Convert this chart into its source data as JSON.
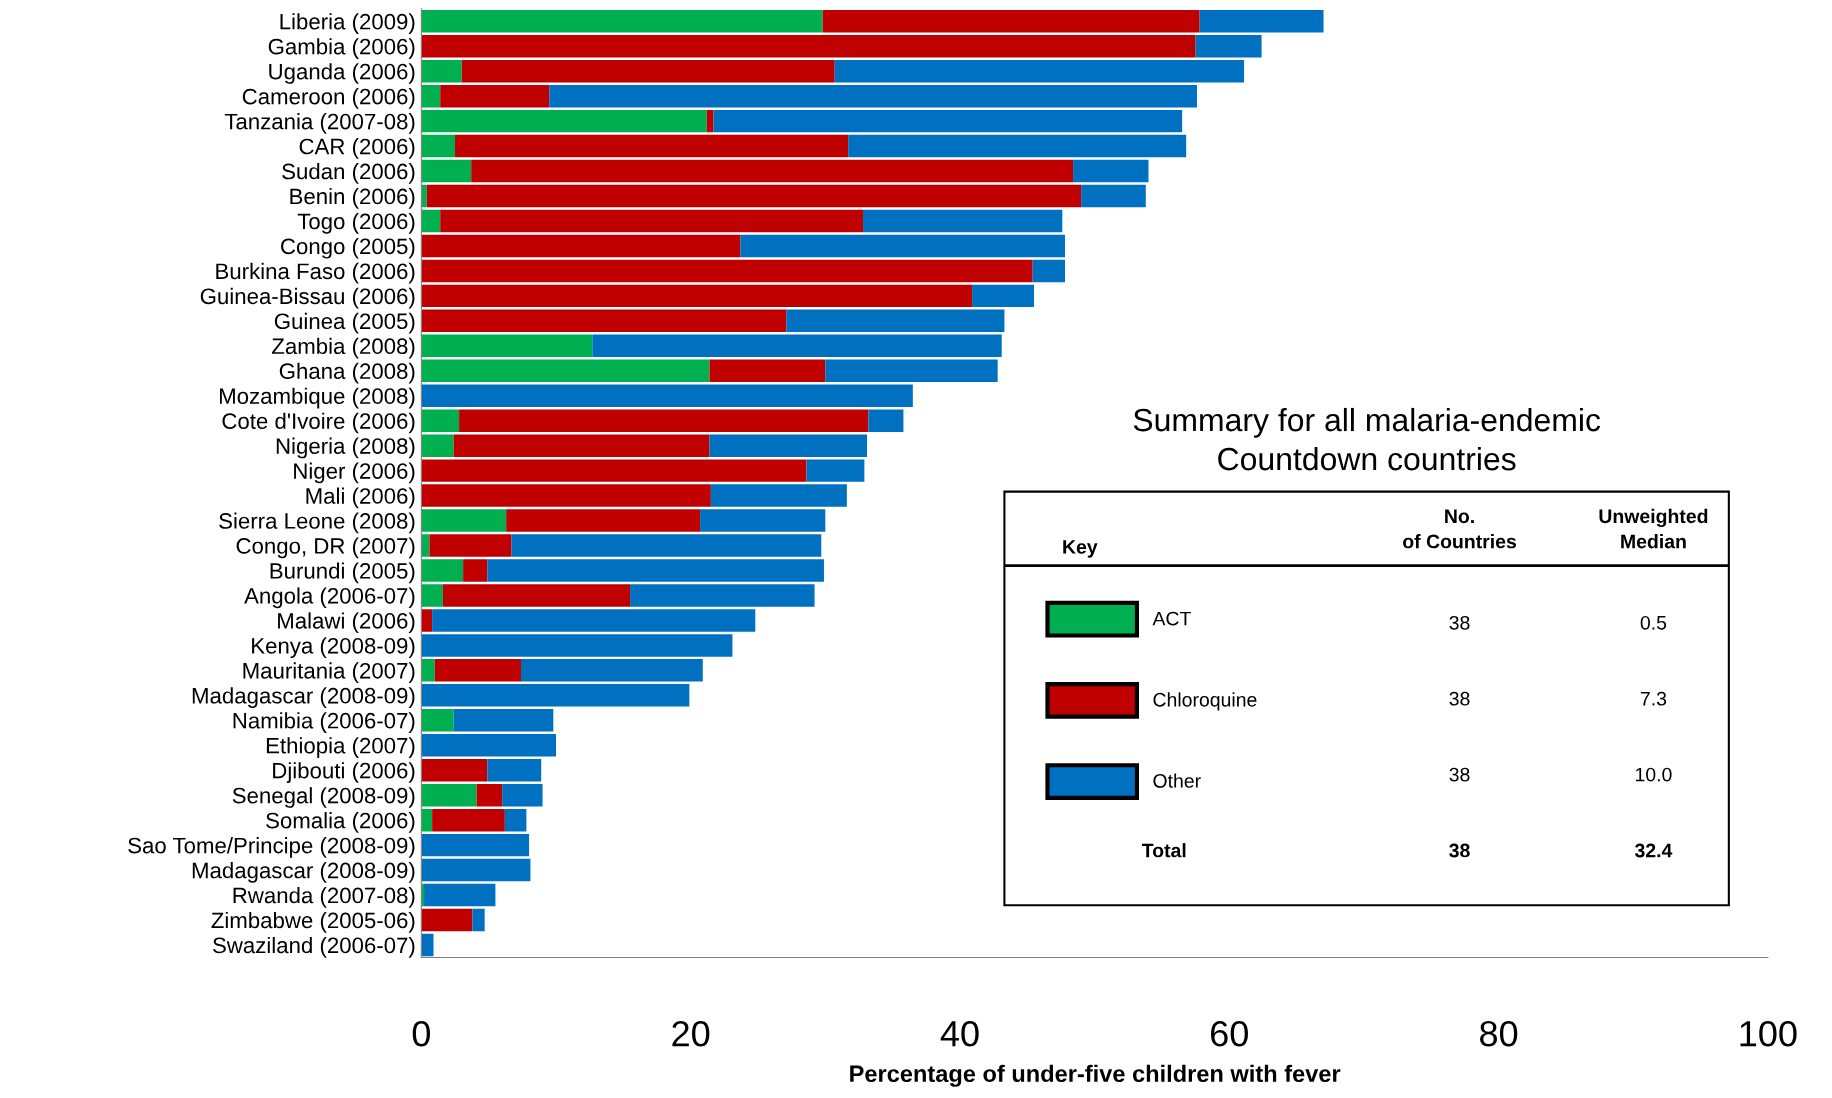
{
  "chart_data": {
    "type": "bar",
    "orientation": "horizontal",
    "stacked": true,
    "categories": [
      "Liberia (2009)",
      "Gambia (2006)",
      "Uganda (2006)",
      "Cameroon (2006)",
      "Tanzania (2007-08)",
      "CAR (2006)",
      "Sudan (2006)",
      "Benin (2006)",
      "Togo (2006)",
      "Congo (2005)",
      "Burkina Faso (2006)",
      "Guinea-Bissau (2006)",
      "Guinea (2005)",
      "Zambia (2008)",
      "Ghana (2008)",
      "Mozambique (2008)",
      "Cote d'Ivoire (2006)",
      "Nigeria (2008)",
      "Niger (2006)",
      "Mali (2006)",
      "Sierra Leone (2008)",
      "Congo, DR (2007)",
      "Burundi (2005)",
      "Angola (2006-07)",
      "Malawi (2006)",
      "Kenya (2008-09)",
      "Mauritania (2007)",
      "Madagascar (2008-09)",
      "Namibia (2006-07)",
      "Ethiopia (2007)",
      "Djibouti (2006)",
      "Senegal (2008-09)",
      "Somalia (2006)",
      "Sao Tome/Principe (2008-09)",
      "Madagascar (2008-09)",
      "Rwanda (2007-08)",
      "Zimbabwe (2005-06)",
      "Swaziland (2006-07)"
    ],
    "series": [
      {
        "name": "ACT",
        "color": "#00b050",
        "values": [
          29.8,
          0,
          3.0,
          1.4,
          21.2,
          2.5,
          3.7,
          0.4,
          1.4,
          0,
          0,
          0,
          0,
          12.7,
          21.4,
          0,
          2.8,
          2.4,
          0,
          0,
          6.3,
          0.6,
          3.1,
          1.6,
          0,
          0,
          1.0,
          0,
          2.4,
          0,
          0,
          4.1,
          0.8,
          0,
          0,
          0.2,
          0,
          0
        ]
      },
      {
        "name": "Chloroquine",
        "color": "#c00000",
        "values": [
          28.0,
          57.5,
          27.7,
          8.1,
          0.5,
          29.2,
          44.7,
          48.6,
          31.4,
          23.7,
          45.4,
          40.9,
          27.1,
          0,
          8.6,
          0,
          30.4,
          19.0,
          28.6,
          21.5,
          14.4,
          6.1,
          1.8,
          13.9,
          0.8,
          0,
          6.4,
          0,
          0,
          0,
          4.9,
          1.9,
          5.4,
          0,
          0,
          0,
          3.8,
          0
        ]
      },
      {
        "name": "Other",
        "color": "#0070c0",
        "values": [
          9.2,
          4.9,
          30.4,
          48.1,
          34.8,
          25.1,
          5.6,
          4.8,
          14.8,
          24.1,
          2.4,
          4.6,
          16.2,
          30.4,
          12.8,
          36.5,
          2.6,
          11.7,
          4.3,
          10.1,
          9.3,
          23.0,
          25.0,
          13.7,
          24.0,
          23.1,
          13.5,
          19.9,
          7.4,
          10.0,
          4.0,
          3.0,
          1.6,
          8.0,
          8.1,
          5.3,
          0.9,
          0.9
        ]
      }
    ],
    "xlim": [
      0,
      100
    ],
    "xticks": [
      0,
      20,
      40,
      60,
      80,
      100
    ],
    "xlabel": "Percentage of under-five children with fever",
    "legend": "bottom right",
    "grid": false,
    "annotations": [
      "Summary for all malaria-endemic Countdown countries",
      "Key",
      "No. of Countries",
      "Unweighted Median",
      "38",
      "0.5",
      "38",
      "7.3",
      "38",
      "10.0",
      "Total",
      "38",
      "32.4"
    ]
  }
}
